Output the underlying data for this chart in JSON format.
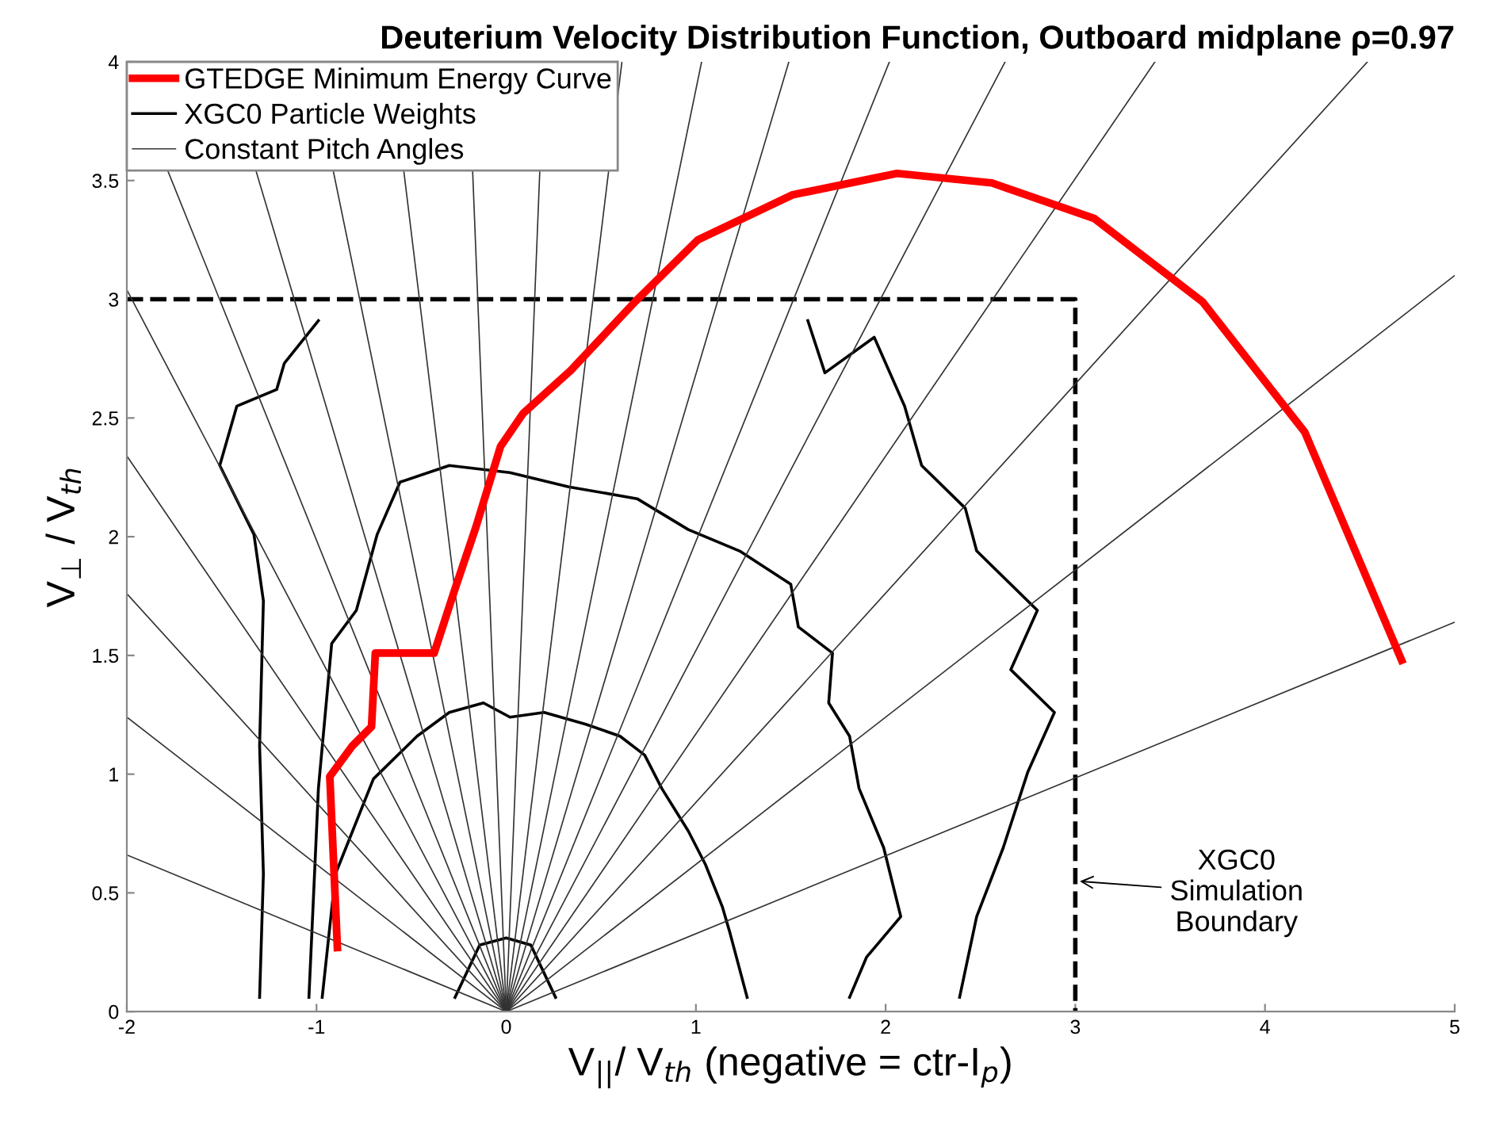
{
  "chart_data": {
    "type": "line",
    "title": "Deuterium Velocity Distribution Function, Outboard midplane ρ=0.97",
    "xlabel": "V$_{||}$/ V$_{th}$ (negative = ctr-I$_{p}$)",
    "ylabel": "V$_{⊥}$ / V$_{th}$",
    "xlim": [
      -2,
      5
    ],
    "xticks": [
      -2,
      -1,
      0,
      1,
      2,
      3,
      4,
      5
    ],
    "ylim": [
      0,
      4
    ],
    "yticks": [
      0,
      0.5,
      1,
      1.5,
      2,
      2.5,
      3,
      3.5,
      4
    ],
    "grid": false,
    "legend": "top left",
    "tick_labels": true,
    "annotations": [
      {
        "text": "XGC0\nSimulation\nBoundary",
        "x": 3,
        "y": 0.55
      }
    ],
    "series": [
      {
        "name": "GTEDGE Minimum Energy Curve",
        "color": "#ff0000",
        "x": [
          -0.89,
          -0.93,
          -0.81,
          -0.71,
          -0.69,
          -0.38,
          -0.27,
          -0.16,
          -0.03,
          0.09,
          0.34,
          0.68,
          1.01,
          1.51,
          2.06,
          2.56,
          3.1,
          3.67,
          4.21,
          4.72
        ],
        "values": [
          0.27,
          0.99,
          1.12,
          1.2,
          1.51,
          1.51,
          1.78,
          2.04,
          2.38,
          2.52,
          2.7,
          2.99,
          3.25,
          3.44,
          3.53,
          3.49,
          3.34,
          2.99,
          2.44,
          1.48
        ]
      },
      {
        "name": "XGC0 Particle Weights",
        "color": "#000000",
        "x": [
          -0.27,
          -0.14,
          0.0,
          0.13,
          0.26
        ],
        "values": [
          0.06,
          0.28,
          0.31,
          0.28,
          0.06
        ]
      },
      {
        "color": "#000000",
        "x": [
          -0.97,
          -0.9,
          -0.7,
          -0.47,
          -0.3,
          -0.12,
          0.02,
          0.2,
          0.42,
          0.6,
          0.73,
          0.82,
          0.96,
          1.05,
          1.14,
          1.18,
          1.27
        ],
        "values": [
          0.06,
          0.58,
          0.98,
          1.16,
          1.26,
          1.3,
          1.24,
          1.26,
          1.21,
          1.16,
          1.08,
          0.94,
          0.76,
          0.62,
          0.44,
          0.33,
          0.06
        ]
      },
      {
        "color": "#000000",
        "x": [
          -1.04,
          -0.99,
          -0.92,
          -0.79,
          -0.68,
          -0.56,
          -0.3,
          0.02,
          0.33,
          0.69,
          0.96,
          1.23,
          1.5,
          1.54,
          1.72,
          1.7,
          1.81,
          1.86,
          1.99,
          2.08,
          1.9,
          1.81
        ],
        "values": [
          0.06,
          0.94,
          1.55,
          1.69,
          2.01,
          2.23,
          2.3,
          2.27,
          2.21,
          2.16,
          2.03,
          1.94,
          1.8,
          1.62,
          1.51,
          1.3,
          1.16,
          0.94,
          0.69,
          0.4,
          0.23,
          0.06
        ]
      },
      {
        "color": "#000000",
        "x": [
          -1.3,
          -1.28,
          -1.3,
          -1.28,
          -1.33,
          -1.51,
          -1.42,
          -1.21,
          -1.17,
          -0.99
        ],
        "values": [
          0.06,
          0.58,
          1.12,
          1.73,
          2.01,
          2.3,
          2.55,
          2.62,
          2.73,
          2.91
        ]
      },
      {
        "color": "#000000",
        "x": [
          1.59,
          1.68,
          1.94,
          2.1,
          2.19,
          2.42,
          2.48,
          2.8,
          2.66,
          2.89,
          2.75,
          2.62,
          2.48,
          2.39
        ],
        "values": [
          2.91,
          2.69,
          2.84,
          2.55,
          2.3,
          2.12,
          1.94,
          1.69,
          1.44,
          1.26,
          1.01,
          0.69,
          0.4,
          0.06
        ]
      },
      {
        "color": "#000000",
        "line_style": "dashed",
        "x": [
          -2,
          3,
          3
        ],
        "values": [
          3,
          3,
          0
        ]
      },
      {
        "name": "Constant Pitch Angles",
        "color": "#333333",
        "x": [
          0,
          5
        ],
        "values": [
          0,
          1.64
        ]
      },
      {
        "color": "#333333",
        "x": [
          0,
          5
        ],
        "values": [
          0,
          3.1
        ]
      },
      {
        "color": "#333333",
        "x": [
          0,
          4.54
        ],
        "values": [
          0,
          4
        ]
      },
      {
        "color": "#333333",
        "x": [
          0,
          3.42
        ],
        "values": [
          0,
          4
        ]
      },
      {
        "color": "#333333",
        "x": [
          0,
          2.63
        ],
        "values": [
          0,
          4
        ]
      },
      {
        "color": "#333333",
        "x": [
          0,
          2.02
        ],
        "values": [
          0,
          4
        ]
      },
      {
        "color": "#333333",
        "x": [
          0,
          1.49
        ],
        "values": [
          0,
          4
        ]
      },
      {
        "color": "#333333",
        "x": [
          0,
          1.03
        ],
        "values": [
          0,
          4
        ]
      },
      {
        "color": "#333333",
        "x": [
          0,
          0.61
        ],
        "values": [
          0,
          4
        ]
      },
      {
        "color": "#333333",
        "x": [
          0,
          0.2
        ],
        "values": [
          0,
          4
        ]
      },
      {
        "color": "#333333",
        "x": [
          0,
          -0.2
        ],
        "values": [
          0,
          4
        ]
      },
      {
        "color": "#333333",
        "x": [
          0,
          -0.61
        ],
        "values": [
          0,
          4
        ]
      },
      {
        "color": "#333333",
        "x": [
          0,
          -1.03
        ],
        "values": [
          0,
          4
        ]
      },
      {
        "color": "#333333",
        "x": [
          0,
          -1.49
        ],
        "values": [
          0,
          4
        ]
      },
      {
        "color": "#333333",
        "x": [
          0,
          -2
        ],
        "values": [
          0,
          3.97
        ]
      },
      {
        "color": "#333333",
        "x": [
          0,
          -2
        ],
        "values": [
          0,
          3.04
        ]
      },
      {
        "color": "#333333",
        "x": [
          0,
          -2
        ],
        "values": [
          0,
          2.34
        ]
      },
      {
        "color": "#333333",
        "x": [
          0,
          -2
        ],
        "values": [
          0,
          1.76
        ]
      },
      {
        "color": "#333333",
        "x": [
          0,
          -2
        ],
        "values": [
          0,
          1.24
        ]
      },
      {
        "color": "#333333",
        "x": [
          0,
          -2
        ],
        "values": [
          0,
          0.66
        ]
      }
    ]
  }
}
